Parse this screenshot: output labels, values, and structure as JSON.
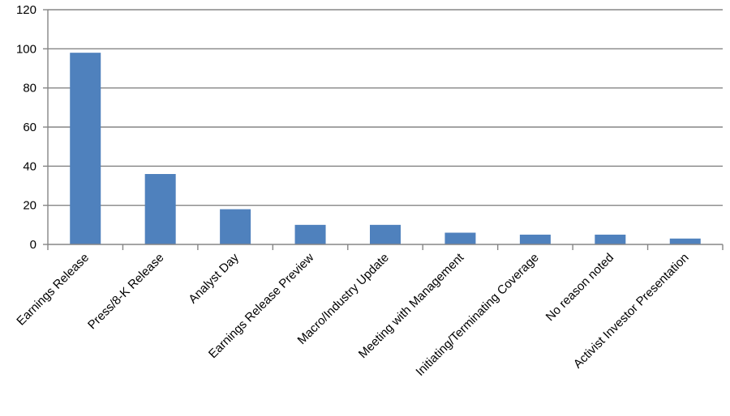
{
  "colors": {
    "bar": "#4F81BD",
    "grid": "#868686",
    "text": "#000000",
    "background": "#FFFFFF"
  },
  "chart_data": {
    "type": "bar",
    "title": "",
    "xlabel": "",
    "ylabel": "",
    "ylim": [
      0,
      120
    ],
    "yticks": [
      0,
      20,
      40,
      60,
      80,
      100,
      120
    ],
    "grid": true,
    "legend": "none",
    "categories": [
      "Earnings Release",
      "Press/8-K Release",
      "Analyst Day",
      "Earnings Release Preview",
      "Macro/Industry Update",
      "Meeting with Management",
      "Initiating/Terminating Coverage",
      "No reason noted",
      "Activist Investor Presentation"
    ],
    "values": [
      98,
      36,
      18,
      10,
      10,
      6,
      5,
      5,
      3
    ]
  }
}
